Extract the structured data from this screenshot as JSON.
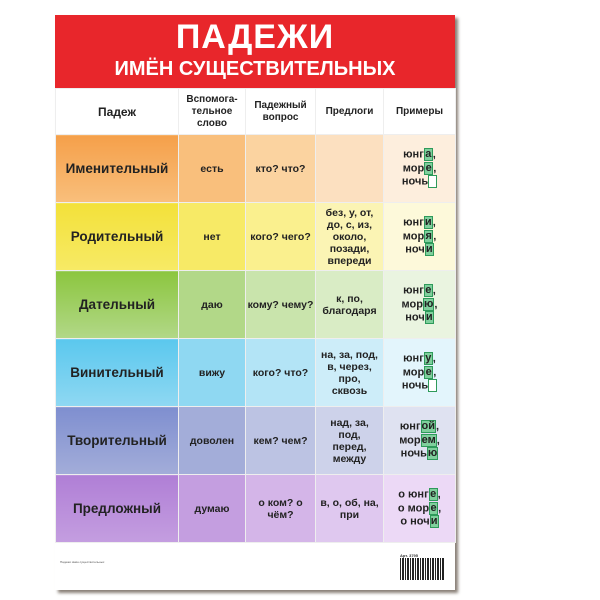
{
  "title": {
    "line1": "ПАДЕЖИ",
    "line2": "ИМЁН СУЩЕСТВИТЕЛЬНЫХ",
    "color": "#e8262b"
  },
  "table": {
    "headers": [
      "Падеж",
      "Вспомога-тельное слово",
      "Падежный вопрос",
      "Предлоги",
      "Примеры"
    ],
    "rows": [
      {
        "case": "Именительный",
        "aux": "есть",
        "question": "кто? что?",
        "prepositions": "",
        "examples": [
          {
            "stem": "юнг",
            "end": "а",
            "tail": ","
          },
          {
            "stem": "мор",
            "end": "е",
            "tail": ","
          },
          {
            "stem": "ночь",
            "end": "",
            "tail": ""
          }
        ],
        "colors": [
          "#f5a04a",
          "#f9bf7c",
          "#fbd3a0",
          "#fce0c0",
          "#fdeedd"
        ]
      },
      {
        "case": "Родительный",
        "aux": "нет",
        "question": "кого? чего?",
        "prepositions": "без, у, от, до, с, из, около, позади, впереди",
        "examples": [
          {
            "stem": "юнг",
            "end": "и",
            "tail": ","
          },
          {
            "stem": "мор",
            "end": "я",
            "tail": ","
          },
          {
            "stem": "ноч",
            "end": "и",
            "tail": ""
          }
        ],
        "colors": [
          "#f3e13a",
          "#f7ea66",
          "#faf08e",
          "#fbf4b4",
          "#fdf9da"
        ]
      },
      {
        "case": "Дательный",
        "aux": "даю",
        "question": "кому? чему?",
        "prepositions": "к, по, благодаря",
        "examples": [
          {
            "stem": "юнг",
            "end": "е",
            "tail": ","
          },
          {
            "stem": "мор",
            "end": "ю",
            "tail": ","
          },
          {
            "stem": "ноч",
            "end": "и",
            "tail": ""
          }
        ],
        "colors": [
          "#8cc63f",
          "#b2d888",
          "#c9e4ac",
          "#d9ecc5",
          "#eaf4e0"
        ]
      },
      {
        "case": "Винительный",
        "aux": "вижу",
        "question": "кого? что?",
        "prepositions": "на, за, под, в, через, про, сквозь",
        "examples": [
          {
            "stem": "юнг",
            "end": "у",
            "tail": ","
          },
          {
            "stem": "мор",
            "end": "е",
            "tail": ","
          },
          {
            "stem": "ночь",
            "end": "",
            "tail": ""
          }
        ],
        "colors": [
          "#5bc8ee",
          "#8fd8f2",
          "#b3e4f6",
          "#cdedf9",
          "#e3f5fc"
        ]
      },
      {
        "case": "Творительный",
        "aux": "доволен",
        "question": "кем? чем?",
        "prepositions": "над, за, под, перед, между",
        "examples": [
          {
            "stem": "юнг",
            "end": "ой",
            "tail": ","
          },
          {
            "stem": "мор",
            "end": "ем",
            "tail": ","
          },
          {
            "stem": "ночь",
            "end": "ю",
            "tail": ""
          }
        ],
        "colors": [
          "#7f8fd0",
          "#a3add9",
          "#bcc3e3",
          "#cdd2ea",
          "#dfe2f1"
        ]
      },
      {
        "case": "Предложный",
        "aux": "думаю",
        "question": "о ком? о чём?",
        "prepositions": "в, о, об, на, при",
        "examples": [
          {
            "stem": "о юнг",
            "end": "е",
            "tail": ","
          },
          {
            "stem": "о мор",
            "end": "е",
            "tail": ","
          },
          {
            "stem": "о ноч",
            "end": "и",
            "tail": ""
          }
        ],
        "colors": [
          "#b07fd6",
          "#c49ee0",
          "#d4b5e8",
          "#dfc8ef",
          "#ecd9f6"
        ]
      }
    ]
  },
  "footer": {
    "product": "Падежи имён существительных",
    "article": "Арт. 3795"
  }
}
